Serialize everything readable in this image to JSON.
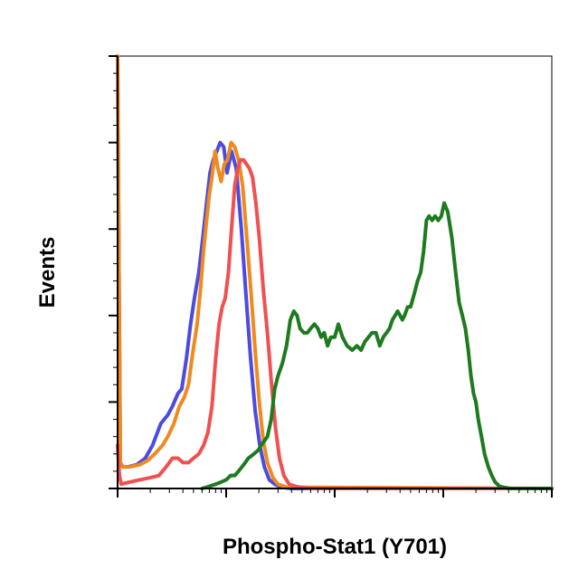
{
  "chart_data": {
    "type": "line",
    "title": "",
    "xlabel": "Phospho-Stat1 (Y701)",
    "ylabel": "Events",
    "xscale": "log",
    "xlim": [
      1,
      10000
    ],
    "ylim": [
      0,
      1
    ],
    "grid": false,
    "legend": "none",
    "x_major_ticks": [
      1,
      10,
      100,
      1000,
      10000
    ],
    "y_major_ticks": [
      0,
      0.2,
      0.4,
      0.6,
      0.8,
      1.0
    ],
    "series": [
      {
        "color": "#4b4be0",
        "x": [
          1,
          1.03,
          1.06,
          1.12,
          1.25,
          1.5,
          1.8,
          2.1,
          2.5,
          2.9,
          3.2,
          3.6,
          3.9,
          4.3,
          4.7,
          5.1,
          5.6,
          6.1,
          6.6,
          7.1,
          7.6,
          8.2,
          8.8,
          9.5,
          10.2,
          11.2,
          12.4,
          13.8,
          15.2,
          16.8,
          18.5,
          20.4,
          22.5,
          25,
          28,
          32,
          40,
          10000
        ],
        "y": [
          1.0,
          0.5,
          0.06,
          0.05,
          0.05,
          0.055,
          0.07,
          0.1,
          0.15,
          0.17,
          0.19,
          0.22,
          0.23,
          0.3,
          0.38,
          0.44,
          0.5,
          0.58,
          0.66,
          0.73,
          0.76,
          0.78,
          0.8,
          0.79,
          0.73,
          0.78,
          0.74,
          0.6,
          0.45,
          0.3,
          0.18,
          0.1,
          0.05,
          0.02,
          0.01,
          0.003,
          0,
          0
        ]
      },
      {
        "color": "#f08a1e",
        "x": [
          1,
          1.03,
          1.06,
          1.12,
          1.3,
          1.6,
          1.9,
          2.2,
          2.6,
          2.9,
          3.3,
          3.7,
          4.1,
          4.5,
          4.9,
          5.4,
          5.8,
          6.2,
          6.6,
          7.0,
          7.4,
          7.9,
          8.4,
          9.0,
          9.6,
          10.3,
          11.1,
          12.0,
          13.0,
          14.2,
          15.5,
          17,
          18.5,
          20.2,
          22,
          24,
          27,
          30,
          36,
          10000
        ],
        "y": [
          1.0,
          0.5,
          0.06,
          0.05,
          0.05,
          0.055,
          0.065,
          0.08,
          0.1,
          0.12,
          0.15,
          0.19,
          0.21,
          0.24,
          0.31,
          0.38,
          0.46,
          0.55,
          0.62,
          0.68,
          0.72,
          0.78,
          0.74,
          0.71,
          0.75,
          0.76,
          0.8,
          0.79,
          0.76,
          0.7,
          0.58,
          0.45,
          0.32,
          0.2,
          0.11,
          0.06,
          0.025,
          0.01,
          0.003,
          0
        ]
      },
      {
        "color": "#f05050",
        "x": [
          1,
          1.04,
          1.08,
          1.3,
          1.6,
          2.0,
          2.4,
          2.8,
          3.2,
          3.6,
          4.0,
          4.5,
          5.0,
          5.6,
          6.2,
          6.8,
          7.4,
          8.0,
          8.6,
          9.2,
          9.8,
          10.5,
          11.2,
          12.0,
          12.8,
          13.6,
          14.5,
          15.4,
          16.4,
          17.5,
          18.8,
          20.2,
          22,
          24,
          26,
          28.5,
          31,
          34,
          38,
          45,
          60,
          10000
        ],
        "y": [
          0.1,
          0.03,
          0.01,
          0.015,
          0.02,
          0.025,
          0.03,
          0.05,
          0.07,
          0.07,
          0.06,
          0.06,
          0.07,
          0.08,
          0.1,
          0.13,
          0.19,
          0.3,
          0.38,
          0.42,
          0.44,
          0.5,
          0.6,
          0.7,
          0.74,
          0.76,
          0.76,
          0.75,
          0.74,
          0.72,
          0.66,
          0.58,
          0.46,
          0.36,
          0.25,
          0.14,
          0.07,
          0.03,
          0.01,
          0.004,
          0,
          0
        ]
      },
      {
        "color": "#1e7a1e",
        "x": [
          6,
          7,
          8,
          9,
          10,
          11,
          12,
          13,
          14,
          15,
          16,
          17,
          18,
          19,
          20,
          21,
          22.5,
          24,
          26,
          28,
          30,
          33,
          36,
          39,
          42,
          45,
          48,
          52,
          56,
          60,
          65,
          70,
          75,
          80,
          86,
          92,
          100,
          108,
          118,
          130,
          145,
          160,
          175,
          190,
          205,
          220,
          240,
          260,
          280,
          300,
          320,
          340,
          360,
          380,
          400,
          420,
          440,
          470,
          500,
          540,
          580,
          620,
          660,
          700,
          740,
          790,
          840,
          900,
          960,
          1020,
          1100,
          1200,
          1300,
          1400,
          1500,
          1600,
          1700,
          1800,
          1900,
          2000,
          2100,
          2250,
          2400,
          2600,
          2800,
          3000,
          3300,
          3700,
          4200,
          10000
        ],
        "y": [
          0,
          0.005,
          0.01,
          0.015,
          0.02,
          0.03,
          0.03,
          0.04,
          0.05,
          0.06,
          0.07,
          0.075,
          0.08,
          0.085,
          0.09,
          0.1,
          0.11,
          0.12,
          0.16,
          0.23,
          0.26,
          0.29,
          0.33,
          0.39,
          0.41,
          0.4,
          0.37,
          0.36,
          0.36,
          0.37,
          0.38,
          0.37,
          0.35,
          0.36,
          0.33,
          0.35,
          0.35,
          0.38,
          0.35,
          0.33,
          0.32,
          0.33,
          0.32,
          0.34,
          0.35,
          0.36,
          0.36,
          0.33,
          0.35,
          0.36,
          0.37,
          0.39,
          0.4,
          0.41,
          0.4,
          0.39,
          0.4,
          0.42,
          0.42,
          0.45,
          0.48,
          0.5,
          0.55,
          0.62,
          0.63,
          0.62,
          0.63,
          0.62,
          0.63,
          0.66,
          0.64,
          0.58,
          0.5,
          0.43,
          0.4,
          0.37,
          0.32,
          0.26,
          0.22,
          0.2,
          0.16,
          0.12,
          0.08,
          0.05,
          0.03,
          0.015,
          0.005,
          0.002,
          0,
          0
        ]
      }
    ]
  }
}
